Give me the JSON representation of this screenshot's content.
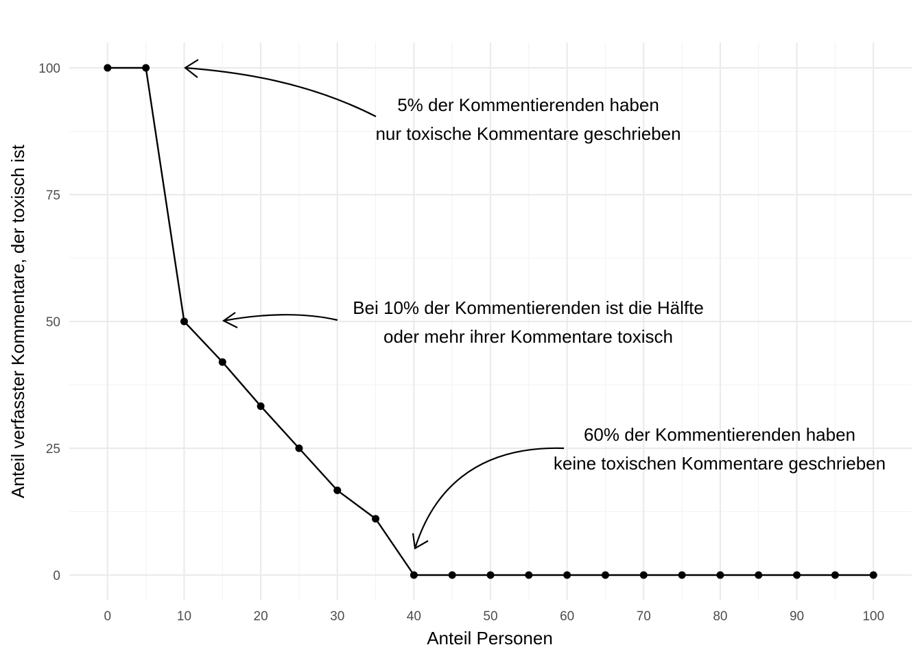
{
  "chart_data": {
    "type": "line",
    "title": "",
    "xlabel": "Anteil Personen",
    "ylabel": "Anteil verfasster Kommentare, der toxisch ist",
    "xlim": [
      -5,
      105
    ],
    "ylim": [
      -5,
      105
    ],
    "x_ticks": [
      0,
      10,
      20,
      30,
      40,
      50,
      60,
      70,
      80,
      90,
      100
    ],
    "y_ticks": [
      0,
      25,
      50,
      75,
      100
    ],
    "grid": true,
    "legend": "none",
    "colors": {
      "line": "#000000",
      "grid_major": "#ebebeb",
      "grid_minor": "#f2f2f2",
      "text": "#4d4d4d"
    },
    "series": [
      {
        "x": [
          0,
          5,
          10,
          15,
          20,
          25,
          30,
          35,
          40,
          45,
          50,
          55,
          60,
          65,
          70,
          75,
          80,
          85,
          90,
          95,
          100
        ],
        "values": [
          100,
          100,
          50,
          42,
          33.3,
          25,
          16.7,
          11.1,
          0,
          0,
          0,
          0,
          0,
          0,
          0,
          0,
          0,
          0,
          0,
          0,
          0
        ]
      }
    ],
    "annotations": [
      {
        "lines": [
          "5% der Kommentierenden haben",
          "nur toxische Kommentare geschrieben"
        ],
        "target": [
          10,
          100
        ]
      },
      {
        "lines": [
          "Bei 10% der Kommentierenden ist die Hälfte",
          "oder mehr ihrer Kommentare toxisch"
        ],
        "target": [
          15,
          50
        ]
      },
      {
        "lines": [
          "60% der Kommentierenden haben",
          "keine toxischen Kommentare geschrieben"
        ],
        "target": [
          40,
          5
        ]
      }
    ]
  }
}
